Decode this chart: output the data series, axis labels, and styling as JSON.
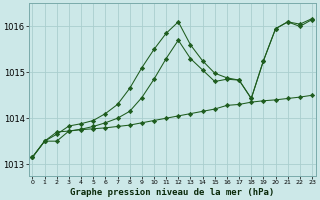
{
  "xlabel": "Graphe pression niveau de la mer (hPa)",
  "background_color": "#cce8e8",
  "grid_color": "#aacece",
  "line_color": "#1e5c1e",
  "ylim": [
    1012.75,
    1016.5
  ],
  "xlim": [
    -0.3,
    23.3
  ],
  "yticks": [
    1013,
    1014,
    1015,
    1016
  ],
  "xticks": [
    0,
    1,
    2,
    3,
    4,
    5,
    6,
    7,
    8,
    9,
    10,
    11,
    12,
    13,
    14,
    15,
    16,
    17,
    18,
    19,
    20,
    21,
    22,
    23
  ],
  "line1_x": [
    0,
    1,
    2,
    3,
    4,
    5,
    6,
    7,
    8,
    9,
    10,
    11,
    12,
    13,
    14,
    15,
    16,
    17,
    18,
    19,
    20,
    21,
    22,
    23
  ],
  "line1_y": [
    1013.15,
    1013.5,
    1013.5,
    1013.72,
    1013.75,
    1013.77,
    1013.79,
    1013.82,
    1013.85,
    1013.9,
    1013.95,
    1014.0,
    1014.05,
    1014.1,
    1014.15,
    1014.2,
    1014.28,
    1014.3,
    1014.35,
    1014.38,
    1014.4,
    1014.43,
    1014.46,
    1014.5
  ],
  "line2_x": [
    0,
    1,
    2,
    3,
    4,
    5,
    6,
    7,
    8,
    9,
    10,
    11,
    12,
    13,
    14,
    15,
    16,
    17,
    18,
    19,
    20,
    21,
    22,
    23
  ],
  "line2_y": [
    1013.15,
    1013.5,
    1013.7,
    1013.72,
    1013.76,
    1013.82,
    1013.9,
    1014.0,
    1014.15,
    1014.45,
    1014.85,
    1015.3,
    1015.7,
    1015.3,
    1015.05,
    1014.8,
    1014.85,
    1014.83,
    1014.43,
    1015.25,
    1015.95,
    1016.1,
    1016.0,
    1016.15
  ],
  "line3_x": [
    0,
    1,
    2,
    3,
    4,
    5,
    6,
    7,
    8,
    9,
    10,
    11,
    12,
    13,
    14,
    15,
    16,
    17,
    18,
    19,
    20,
    21,
    22,
    23
  ],
  "line3_y": [
    1013.15,
    1013.5,
    1013.65,
    1013.83,
    1013.88,
    1013.95,
    1014.1,
    1014.3,
    1014.65,
    1015.1,
    1015.5,
    1015.85,
    1016.1,
    1015.6,
    1015.25,
    1014.98,
    1014.88,
    1014.83,
    1014.43,
    1015.25,
    1015.95,
    1016.1,
    1016.05,
    1016.17
  ]
}
